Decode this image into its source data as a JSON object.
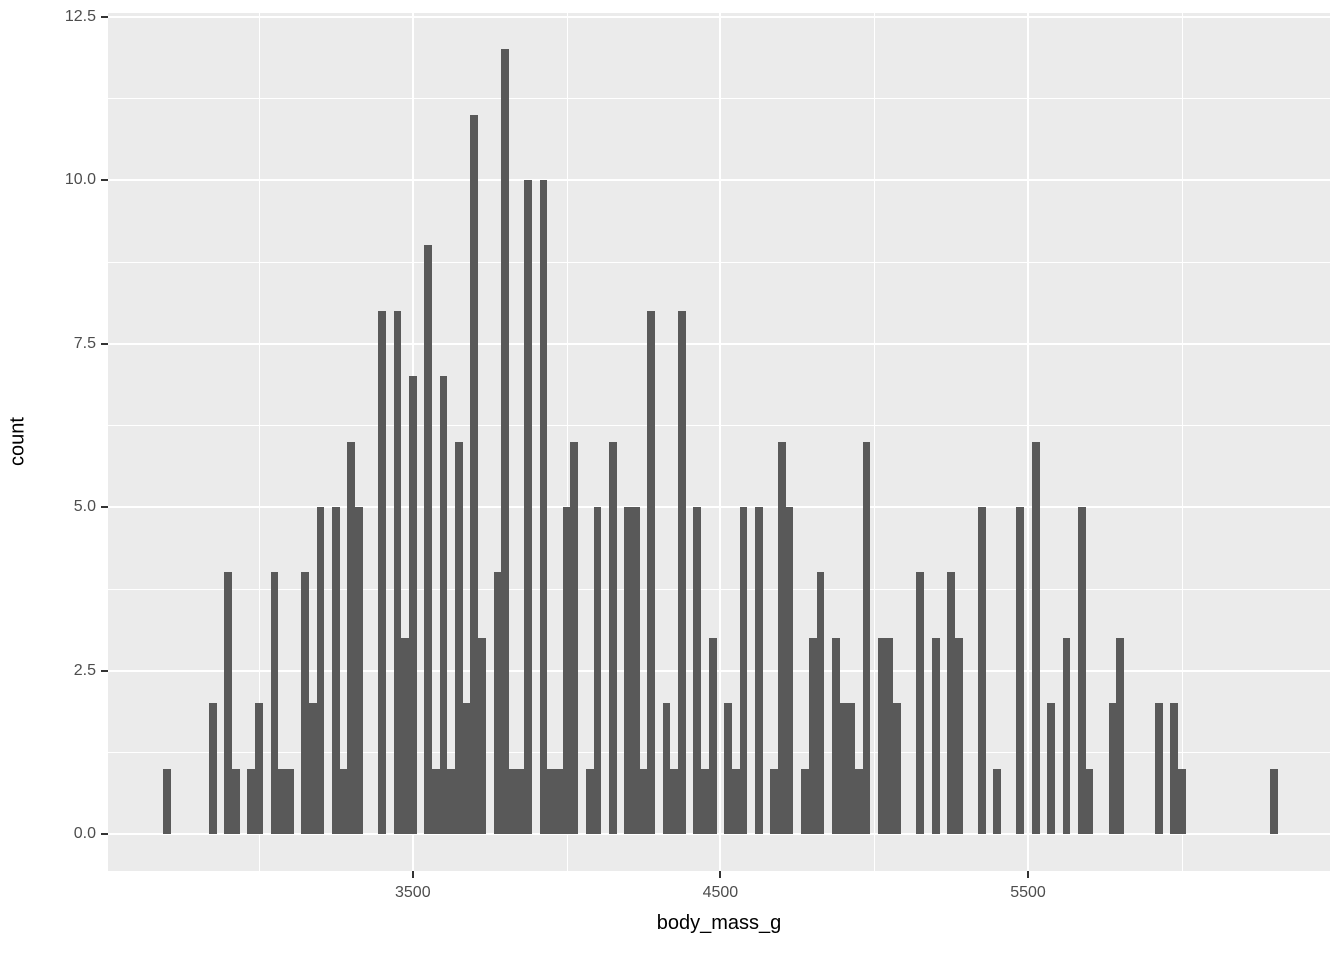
{
  "chart_data": {
    "type": "bar",
    "subtype": "histogram",
    "title": "",
    "xlabel": "body_mass_g",
    "ylabel": "count",
    "binwidth": 25,
    "xlim": [
      2520,
      6480
    ],
    "ylim": [
      -0.6,
      12.6
    ],
    "x_major_ticks": [
      3500,
      4500,
      5500
    ],
    "x_tick_labels": [
      "3500",
      "4500",
      "5500"
    ],
    "x_minor_gridlines": [
      3000,
      4000,
      5000,
      6000
    ],
    "y_major_ticks": [
      0,
      2.5,
      5,
      7.5,
      10,
      12.5
    ],
    "y_tick_labels": [
      "0.0",
      "2.5",
      "5.0",
      "7.5",
      "10.0",
      "12.5"
    ],
    "y_minor_gridlines": [
      1.25,
      3.75,
      6.25,
      8.75,
      11.25
    ],
    "grid": "on",
    "legend": "none",
    "bins": [
      [
        2700,
        1
      ],
      [
        2850,
        2
      ],
      [
        2900,
        4
      ],
      [
        2925,
        1
      ],
      [
        2975,
        1
      ],
      [
        3000,
        2
      ],
      [
        3050,
        4
      ],
      [
        3075,
        1
      ],
      [
        3100,
        1
      ],
      [
        3150,
        4
      ],
      [
        3175,
        2
      ],
      [
        3200,
        5
      ],
      [
        3250,
        5
      ],
      [
        3275,
        1
      ],
      [
        3300,
        6
      ],
      [
        3325,
        5
      ],
      [
        3400,
        8
      ],
      [
        3450,
        8
      ],
      [
        3475,
        3
      ],
      [
        3500,
        7
      ],
      [
        3550,
        9
      ],
      [
        3575,
        1
      ],
      [
        3600,
        7
      ],
      [
        3625,
        1
      ],
      [
        3650,
        6
      ],
      [
        3675,
        2
      ],
      [
        3700,
        11
      ],
      [
        3725,
        3
      ],
      [
        3775,
        4
      ],
      [
        3800,
        12
      ],
      [
        3825,
        1
      ],
      [
        3850,
        1
      ],
      [
        3875,
        10
      ],
      [
        3925,
        10
      ],
      [
        3950,
        1
      ],
      [
        3975,
        1
      ],
      [
        4000,
        5
      ],
      [
        4025,
        6
      ],
      [
        4075,
        1
      ],
      [
        4100,
        5
      ],
      [
        4150,
        6
      ],
      [
        4200,
        5
      ],
      [
        4225,
        5
      ],
      [
        4250,
        1
      ],
      [
        4275,
        8
      ],
      [
        4325,
        2
      ],
      [
        4350,
        1
      ],
      [
        4375,
        8
      ],
      [
        4425,
        5
      ],
      [
        4450,
        1
      ],
      [
        4475,
        3
      ],
      [
        4525,
        2
      ],
      [
        4550,
        1
      ],
      [
        4575,
        5
      ],
      [
        4625,
        5
      ],
      [
        4675,
        1
      ],
      [
        4700,
        6
      ],
      [
        4725,
        5
      ],
      [
        4775,
        1
      ],
      [
        4800,
        3
      ],
      [
        4825,
        4
      ],
      [
        4875,
        3
      ],
      [
        4900,
        2
      ],
      [
        4925,
        2
      ],
      [
        4950,
        1
      ],
      [
        4975,
        6
      ],
      [
        5025,
        3
      ],
      [
        5050,
        3
      ],
      [
        5075,
        2
      ],
      [
        5150,
        4
      ],
      [
        5200,
        3
      ],
      [
        5250,
        4
      ],
      [
        5275,
        3
      ],
      [
        5350,
        5
      ],
      [
        5400,
        1
      ],
      [
        5475,
        5
      ],
      [
        5525,
        6
      ],
      [
        5575,
        2
      ],
      [
        5625,
        3
      ],
      [
        5675,
        5
      ],
      [
        5700,
        1
      ],
      [
        5775,
        2
      ],
      [
        5800,
        3
      ],
      [
        5925,
        2
      ],
      [
        5975,
        2
      ],
      [
        6000,
        1
      ],
      [
        6300,
        1
      ]
    ],
    "colors": {
      "bar_fill": "#595959",
      "panel_background": "#EBEBEB",
      "gridline_major": "#FFFFFF",
      "gridline_minor": "#FFFFFF",
      "tick_mark": "#333333",
      "tick_text": "#4D4D4D",
      "axis_title_text": "#000000",
      "page_background": "#FFFFFF"
    }
  }
}
